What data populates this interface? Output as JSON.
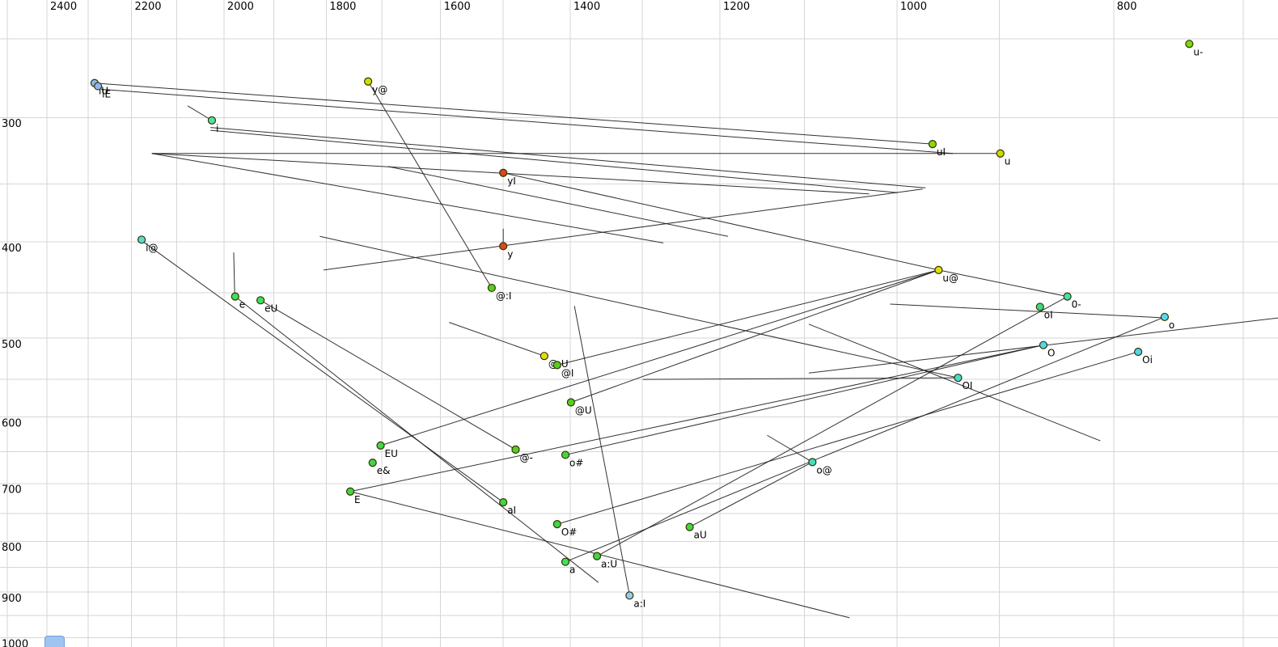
{
  "chart_data": {
    "type": "scatter",
    "title": "",
    "xlabel": "",
    "ylabel": "",
    "x_axis": {
      "unit": "Hz",
      "scale": "log",
      "direction": "reversed",
      "range": [
        2500,
        675
      ],
      "tick_labels": [
        "2400",
        "2200",
        "2000",
        "1800",
        "1600",
        "1400",
        "1200",
        "1000",
        "800"
      ],
      "tick_values": [
        2400,
        2200,
        2000,
        1800,
        1600,
        1400,
        1200,
        1000,
        800
      ],
      "grid_values": [
        2500,
        2400,
        2300,
        2200,
        2100,
        2000,
        1900,
        1800,
        1700,
        1600,
        1500,
        1400,
        1300,
        1200,
        1100,
        1000,
        900,
        800,
        700
      ],
      "grid_on": true
    },
    "y_axis": {
      "unit": "Hz",
      "scale": "log",
      "direction": "reversed",
      "range": [
        250,
        1010
      ],
      "tick_labels": [
        "300",
        "400",
        "500",
        "600",
        "700",
        "800",
        "900",
        "1000"
      ],
      "tick_values": [
        300,
        400,
        500,
        600,
        700,
        800,
        900,
        1000
      ],
      "grid_values": [
        250,
        300,
        350,
        400,
        450,
        500,
        550,
        600,
        650,
        700,
        750,
        800,
        850,
        900,
        950,
        1000
      ],
      "grid_on": true
    },
    "points": [
      {
        "label": "iU",
        "f2": 2285,
        "f1": 277,
        "color": "#8fb6f2"
      },
      {
        "label": "iE",
        "f2": 2277,
        "f1": 279,
        "color": "#8fb6f2"
      },
      {
        "label": "i",
        "f2": 2025,
        "f1": 302,
        "color": "#4fe3a5"
      },
      {
        "label": "y@",
        "f2": 1724,
        "f1": 276,
        "color": "#c9e000"
      },
      {
        "label": "u-",
        "f2": 740,
        "f1": 253,
        "color": "#7bdb0c"
      },
      {
        "label": "uI",
        "f2": 964,
        "f1": 319,
        "color": "#8cd900"
      },
      {
        "label": "u",
        "f2": 899,
        "f1": 326,
        "color": "#ced800"
      },
      {
        "label": "yI",
        "f2": 1500,
        "f1": 341,
        "color": "#d8491c"
      },
      {
        "label": "y",
        "f2": 1500,
        "f1": 404,
        "color": "#d8491c"
      },
      {
        "label": "i@",
        "f2": 2177,
        "f1": 398,
        "color": "#5cd9d2"
      },
      {
        "label": "u@",
        "f2": 958,
        "f1": 427,
        "color": "#e2e000"
      },
      {
        "label": "@:I",
        "f2": 1518,
        "f1": 445,
        "color": "#55cf22"
      },
      {
        "label": "e",
        "f2": 1977,
        "f1": 454,
        "color": "#3fdf5f"
      },
      {
        "label": "eU",
        "f2": 1926,
        "f1": 458,
        "color": "#3fdf5f"
      },
      {
        "label": "0-",
        "f2": 839,
        "f1": 454,
        "color": "#46ddb0"
      },
      {
        "label": "oI",
        "f2": 863,
        "f1": 465,
        "color": "#3ed87e"
      },
      {
        "label": "o",
        "f2": 759,
        "f1": 476,
        "color": "#5ad8ef"
      },
      {
        "label": "@:U",
        "f2": 1438,
        "f1": 521,
        "color": "#e2e000"
      },
      {
        "label": "@I",
        "f2": 1419,
        "f1": 532,
        "color": "#55cf22"
      },
      {
        "label": "O",
        "f2": 860,
        "f1": 508,
        "color": "#4fd6e8"
      },
      {
        "label": "Oi",
        "f2": 780,
        "f1": 516,
        "color": "#4fd6e8"
      },
      {
        "label": "OI",
        "f2": 939,
        "f1": 548,
        "color": "#47dcd2"
      },
      {
        "label": "@U",
        "f2": 1399,
        "f1": 580,
        "color": "#55cf22"
      },
      {
        "label": "EU",
        "f2": 1702,
        "f1": 641,
        "color": "#44d544"
      },
      {
        "label": "e&",
        "f2": 1716,
        "f1": 667,
        "color": "#44d544"
      },
      {
        "label": "@-",
        "f2": 1481,
        "f1": 647,
        "color": "#55cf22"
      },
      {
        "label": "o#",
        "f2": 1407,
        "f1": 655,
        "color": "#44d544"
      },
      {
        "label": "o@",
        "f2": 1091,
        "f1": 666,
        "color": "#41e0bc"
      },
      {
        "label": "E",
        "f2": 1756,
        "f1": 713,
        "color": "#44d544"
      },
      {
        "label": "aI",
        "f2": 1500,
        "f1": 731,
        "color": "#44d544"
      },
      {
        "label": "O#",
        "f2": 1419,
        "f1": 769,
        "color": "#44d544"
      },
      {
        "label": "aU",
        "f2": 1238,
        "f1": 774,
        "color": "#44d544"
      },
      {
        "label": "a",
        "f2": 1407,
        "f1": 839,
        "color": "#3be35e"
      },
      {
        "label": "a:U",
        "f2": 1362,
        "f1": 828,
        "color": "#44d544"
      },
      {
        "label": "a:I",
        "f2": 1317,
        "f1": 907,
        "color": "#93cbf6"
      }
    ],
    "segments": [
      [
        2285,
        277,
        964,
        319
      ],
      [
        2270,
        281,
        944,
        326
      ],
      [
        2076,
        292,
        2025,
        302
      ],
      [
        2028,
        307,
        971,
        353
      ],
      [
        2028,
        309,
        999,
        357
      ],
      [
        2154,
        326,
        899,
        326
      ],
      [
        2154,
        326,
        1029,
        358
      ],
      [
        2154,
        326,
        1272,
        401
      ],
      [
        1724,
        276,
        1518,
        445
      ],
      [
        1500,
        341,
        958,
        427
      ],
      [
        958,
        427,
        839,
        454
      ],
      [
        1500,
        388,
        1500,
        402
      ],
      [
        1812,
        395,
        939,
        548
      ],
      [
        1299,
        550,
        939,
        548
      ],
      [
        1805,
        427,
        974,
        354
      ],
      [
        2180,
        398,
        1500,
        731
      ],
      [
        1977,
        454,
        1360,
        880
      ],
      [
        1980,
        410,
        1978,
        451
      ],
      [
        1926,
        458,
        1481,
        647
      ],
      [
        1586,
        482,
        1438,
        521
      ],
      [
        1419,
        532,
        958,
        427
      ],
      [
        1399,
        580,
        958,
        427
      ],
      [
        1702,
        641,
        958,
        427
      ],
      [
        1756,
        713,
        860,
        508
      ],
      [
        1407,
        655,
        860,
        508
      ],
      [
        1095,
        542,
        675,
        477
      ],
      [
        1419,
        769,
        780,
        516
      ],
      [
        1407,
        839,
        759,
        476
      ],
      [
        1362,
        828,
        839,
        454
      ],
      [
        1238,
        774,
        1091,
        666
      ],
      [
        1394,
        464,
        1317,
        907
      ],
      [
        1143,
        626,
        1091,
        666
      ],
      [
        1095,
        484,
        811,
        634
      ],
      [
        1007,
        462,
        759,
        477
      ],
      [
        1689,
        336,
        1190,
        395
      ],
      [
        1756,
        713,
        1050,
        955
      ]
    ]
  },
  "artifact": {
    "color": "#9fc4f2",
    "border_color": "#6f9fd8"
  }
}
